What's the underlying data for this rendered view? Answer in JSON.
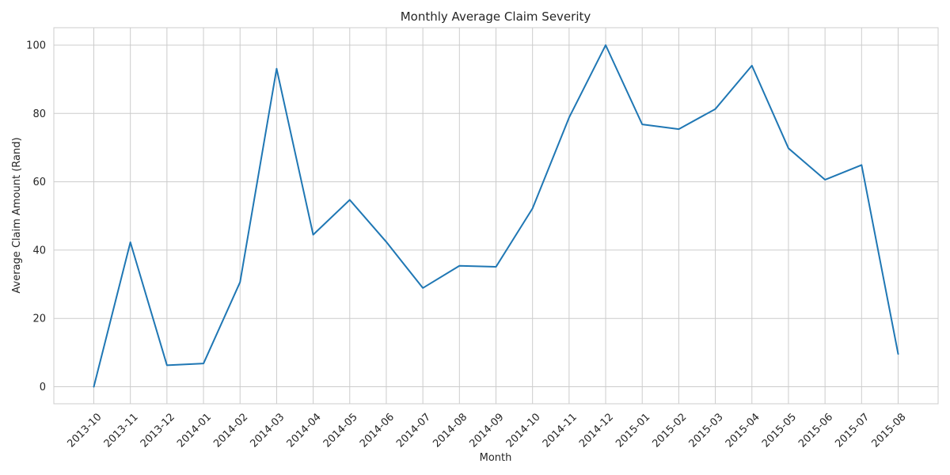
{
  "chart_data": {
    "type": "line",
    "title": "Monthly Average Claim Severity",
    "xlabel": "Month",
    "ylabel": "Average Claim Amount (Rand)",
    "categories": [
      "2013-10",
      "2013-11",
      "2013-12",
      "2014-01",
      "2014-02",
      "2014-03",
      "2014-04",
      "2014-05",
      "2014-06",
      "2014-07",
      "2014-08",
      "2014-09",
      "2014-10",
      "2014-11",
      "2014-12",
      "2015-01",
      "2015-02",
      "2015-03",
      "2015-04",
      "2015-05",
      "2015-06",
      "2015-07",
      "2015-08"
    ],
    "series": [
      {
        "color": "#1f77b4",
        "values": [
          0,
          42.3,
          6.3,
          6.8,
          30.6,
          93.1,
          44.5,
          54.7,
          42.4,
          28.9,
          35.4,
          35.1,
          52.2,
          78.8,
          100.0,
          76.8,
          75.4,
          81.3,
          94.0,
          69.8,
          60.6,
          64.9,
          9.6
        ]
      }
    ],
    "ylim": [
      -5,
      105
    ],
    "yticks": [
      0,
      20,
      40,
      60,
      80,
      100
    ],
    "grid": true,
    "legend": "none"
  }
}
